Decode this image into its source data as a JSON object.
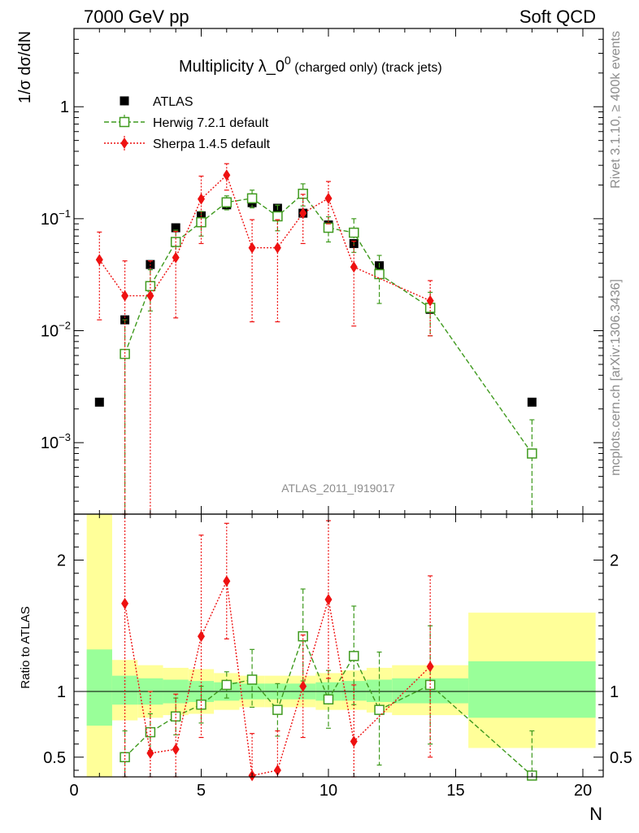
{
  "header": {
    "left": "7000 GeV pp",
    "right": "Soft QCD"
  },
  "side_labels": {
    "rivet": "Rivet 3.1.10, ≥ 400k events",
    "mcplots": "mcplots.cern.ch [arXiv:1306.3436]"
  },
  "chart_data": {
    "type": "scatter",
    "title_main": "Multiplicity λ_0",
    "title_sup": "0",
    "title_sub": " (charged only) (track jets)",
    "analysis_id": "ATLAS_2011_I919017",
    "xlabel": "N",
    "ylabel_top": "1/σ dσ/dN",
    "ylabel_ratio": "Ratio to ATLAS",
    "xlim": [
      0,
      20.8
    ],
    "ylim_top_log": [
      0.00023,
      5
    ],
    "ylim_ratio": [
      0.35,
      2.35
    ],
    "x_ticks": [
      0,
      5,
      10,
      15,
      20
    ],
    "y_ticks_top": [
      {
        "value": 1,
        "label": "1"
      },
      {
        "value": 0.1,
        "label": "10",
        "sup": "−1"
      },
      {
        "value": 0.01,
        "label": "10",
        "sup": "−2"
      },
      {
        "value": 0.001,
        "label": "10",
        "sup": "−3"
      }
    ],
    "y_ticks_ratio": [
      0.5,
      1,
      2
    ],
    "series": [
      {
        "name": "ATLAS",
        "color": "#000000",
        "marker": "square-filled",
        "points": [
          {
            "x": 1,
            "y": 0.0023,
            "ratio": 1
          },
          {
            "x": 2,
            "y": 0.0125,
            "ratio": 1
          },
          {
            "x": 3,
            "y": 0.039,
            "ratio": 1
          },
          {
            "x": 4,
            "y": 0.083,
            "ratio": 1
          },
          {
            "x": 5,
            "y": 0.106,
            "ratio": 1
          },
          {
            "x": 6,
            "y": 0.133,
            "ratio": 1
          },
          {
            "x": 7,
            "y": 0.139,
            "ratio": 1
          },
          {
            "x": 8,
            "y": 0.124,
            "ratio": 1
          },
          {
            "x": 9,
            "y": 0.112,
            "ratio": 1
          },
          {
            "x": 10,
            "y": 0.088,
            "ratio": 1
          },
          {
            "x": 11,
            "y": 0.06,
            "ratio": 1
          },
          {
            "x": 12,
            "y": 0.038,
            "ratio": 1
          },
          {
            "x": 14,
            "y": 0.0155,
            "ratio": 1
          },
          {
            "x": 18,
            "y": 0.0023,
            "ratio": 1
          }
        ]
      },
      {
        "name": "Herwig 7.2.1 default",
        "color": "#3f9a1e",
        "marker": "square-open",
        "linestyle": "dashed",
        "points": [
          {
            "x": 2,
            "y": 0.0062,
            "ylo": 0.0001,
            "yhi": 0.0125,
            "ratio": 0.5,
            "rlo": 0.3,
            "rhi": 0.7
          },
          {
            "x": 3,
            "y": 0.025,
            "ylo": 0.015,
            "yhi": 0.035,
            "ratio": 0.69,
            "rlo": 0.55,
            "rhi": 0.83
          },
          {
            "x": 4,
            "y": 0.062,
            "ylo": 0.045,
            "yhi": 0.079,
            "ratio": 0.81,
            "rlo": 0.67,
            "rhi": 0.95
          },
          {
            "x": 5,
            "y": 0.093,
            "ylo": 0.07,
            "yhi": 0.116,
            "ratio": 0.9,
            "rlo": 0.76,
            "rhi": 1.04
          },
          {
            "x": 6,
            "y": 0.14,
            "ylo": 0.12,
            "yhi": 0.16,
            "ratio": 1.05,
            "rlo": 0.95,
            "rhi": 1.15
          },
          {
            "x": 7,
            "y": 0.152,
            "ylo": 0.125,
            "yhi": 0.18,
            "ratio": 1.09,
            "rlo": 0.88,
            "rhi": 1.32
          },
          {
            "x": 8,
            "y": 0.105,
            "ylo": 0.078,
            "yhi": 0.132,
            "ratio": 0.86,
            "rlo": 0.66,
            "rhi": 1.06
          },
          {
            "x": 9,
            "y": 0.167,
            "ylo": 0.13,
            "yhi": 0.205,
            "ratio": 1.42,
            "rlo": 1.08,
            "rhi": 1.78
          },
          {
            "x": 10,
            "y": 0.083,
            "ylo": 0.062,
            "yhi": 0.104,
            "ratio": 0.94,
            "rlo": 0.72,
            "rhi": 1.16
          },
          {
            "x": 11,
            "y": 0.075,
            "ylo": 0.05,
            "yhi": 0.1,
            "ratio": 1.27,
            "rlo": 0.9,
            "rhi": 1.65
          },
          {
            "x": 12,
            "y": 0.032,
            "ylo": 0.0175,
            "yhi": 0.047,
            "ratio": 0.86,
            "rlo": 0.44,
            "rhi": 1.3
          },
          {
            "x": 14,
            "y": 0.016,
            "ylo": 0.009,
            "yhi": 0.022,
            "ratio": 1.05,
            "rlo": 0.6,
            "rhi": 1.5
          },
          {
            "x": 18,
            "y": 0.0008,
            "ylo": 0.0001,
            "yhi": 0.0016,
            "ratio": 0.36,
            "rlo": 0.05,
            "rhi": 0.7
          }
        ]
      },
      {
        "name": "Sherpa 1.4.5 default",
        "color": "#ee1111",
        "marker": "diamond-filled",
        "linestyle": "dotted",
        "points": [
          {
            "x": 1,
            "y": 0.043,
            "ylo": 0.0125,
            "yhi": 0.076
          },
          {
            "x": 2,
            "y": 0.0205,
            "ylo": 0.0001,
            "yhi": 0.042,
            "ratio": 1.67,
            "rlo": 0.3,
            "rhi": 3.2
          },
          {
            "x": 3,
            "y": 0.0205,
            "ylo": 0.0001,
            "yhi": 0.042,
            "ratio": 0.53,
            "rlo": 0.2,
            "rhi": 1.0
          },
          {
            "x": 4,
            "y": 0.045,
            "ylo": 0.013,
            "yhi": 0.077,
            "ratio": 0.56,
            "rlo": 0.2,
            "rhi": 0.98
          },
          {
            "x": 5,
            "y": 0.15,
            "ylo": 0.06,
            "yhi": 0.24,
            "ratio": 1.42,
            "rlo": 0.65,
            "rhi": 2.19
          },
          {
            "x": 6,
            "y": 0.245,
            "ylo": 0.18,
            "yhi": 0.31,
            "ratio": 1.84,
            "rlo": 1.4,
            "rhi": 2.28
          },
          {
            "x": 7,
            "y": 0.055,
            "ylo": 0.012,
            "yhi": 0.098,
            "ratio": 0.36,
            "rlo": 0.05,
            "rhi": 0.68
          },
          {
            "x": 8,
            "y": 0.055,
            "ylo": 0.012,
            "yhi": 0.098,
            "ratio": 0.4,
            "rlo": 0.1,
            "rhi": 0.7
          },
          {
            "x": 9,
            "y": 0.112,
            "ylo": 0.06,
            "yhi": 0.165,
            "ratio": 1.04,
            "rlo": 0.65,
            "rhi": 1.43
          },
          {
            "x": 10,
            "y": 0.152,
            "ylo": 0.09,
            "yhi": 0.215,
            "ratio": 1.7,
            "rlo": 1.1,
            "rhi": 2.3
          },
          {
            "x": 11,
            "y": 0.037,
            "ylo": 0.011,
            "yhi": 0.063,
            "ratio": 0.62,
            "rlo": 0.2,
            "rhi": 1.05
          },
          {
            "x": 14,
            "y": 0.0185,
            "ylo": 0.009,
            "yhi": 0.028,
            "ratio": 1.19,
            "rlo": 0.5,
            "rhi": 1.88
          }
        ]
      }
    ],
    "ratio_bands": [
      {
        "xlo": 0.5,
        "xhi": 1.5,
        "inner": [
          0.74,
          1.32
        ],
        "outer": [
          0.35,
          2.35
        ]
      },
      {
        "xlo": 1.5,
        "xhi": 2.5,
        "inner": [
          0.9,
          1.12
        ],
        "outer": [
          0.78,
          1.24
        ]
      },
      {
        "xlo": 2.5,
        "xhi": 3.5,
        "inner": [
          0.9,
          1.1
        ],
        "outer": [
          0.8,
          1.2
        ]
      },
      {
        "xlo": 3.5,
        "xhi": 4.5,
        "inner": [
          0.91,
          1.09
        ],
        "outer": [
          0.82,
          1.18
        ]
      },
      {
        "xlo": 4.5,
        "xhi": 5.5,
        "inner": [
          0.92,
          1.08
        ],
        "outer": [
          0.83,
          1.17
        ]
      },
      {
        "xlo": 5.5,
        "xhi": 6.5,
        "inner": [
          0.93,
          1.07
        ],
        "outer": [
          0.86,
          1.14
        ]
      },
      {
        "xlo": 6.5,
        "xhi": 7.5,
        "inner": [
          0.94,
          1.06
        ],
        "outer": [
          0.88,
          1.12
        ]
      },
      {
        "xlo": 7.5,
        "xhi": 8.5,
        "inner": [
          0.94,
          1.06
        ],
        "outer": [
          0.88,
          1.12
        ]
      },
      {
        "xlo": 8.5,
        "xhi": 9.5,
        "inner": [
          0.94,
          1.06
        ],
        "outer": [
          0.88,
          1.12
        ]
      },
      {
        "xlo": 9.5,
        "xhi": 10.5,
        "inner": [
          0.93,
          1.07
        ],
        "outer": [
          0.86,
          1.14
        ]
      },
      {
        "xlo": 10.5,
        "xhi": 11.5,
        "inner": [
          0.93,
          1.08
        ],
        "outer": [
          0.86,
          1.16
        ]
      },
      {
        "xlo": 11.5,
        "xhi": 12.5,
        "inner": [
          0.92,
          1.09
        ],
        "outer": [
          0.84,
          1.18
        ]
      },
      {
        "xlo": 12.5,
        "xhi": 15.5,
        "inner": [
          0.91,
          1.1
        ],
        "outer": [
          0.82,
          1.2
        ]
      },
      {
        "xlo": 15.5,
        "xhi": 20.5,
        "inner": [
          0.8,
          1.23
        ],
        "outer": [
          0.57,
          1.6
        ]
      }
    ]
  }
}
